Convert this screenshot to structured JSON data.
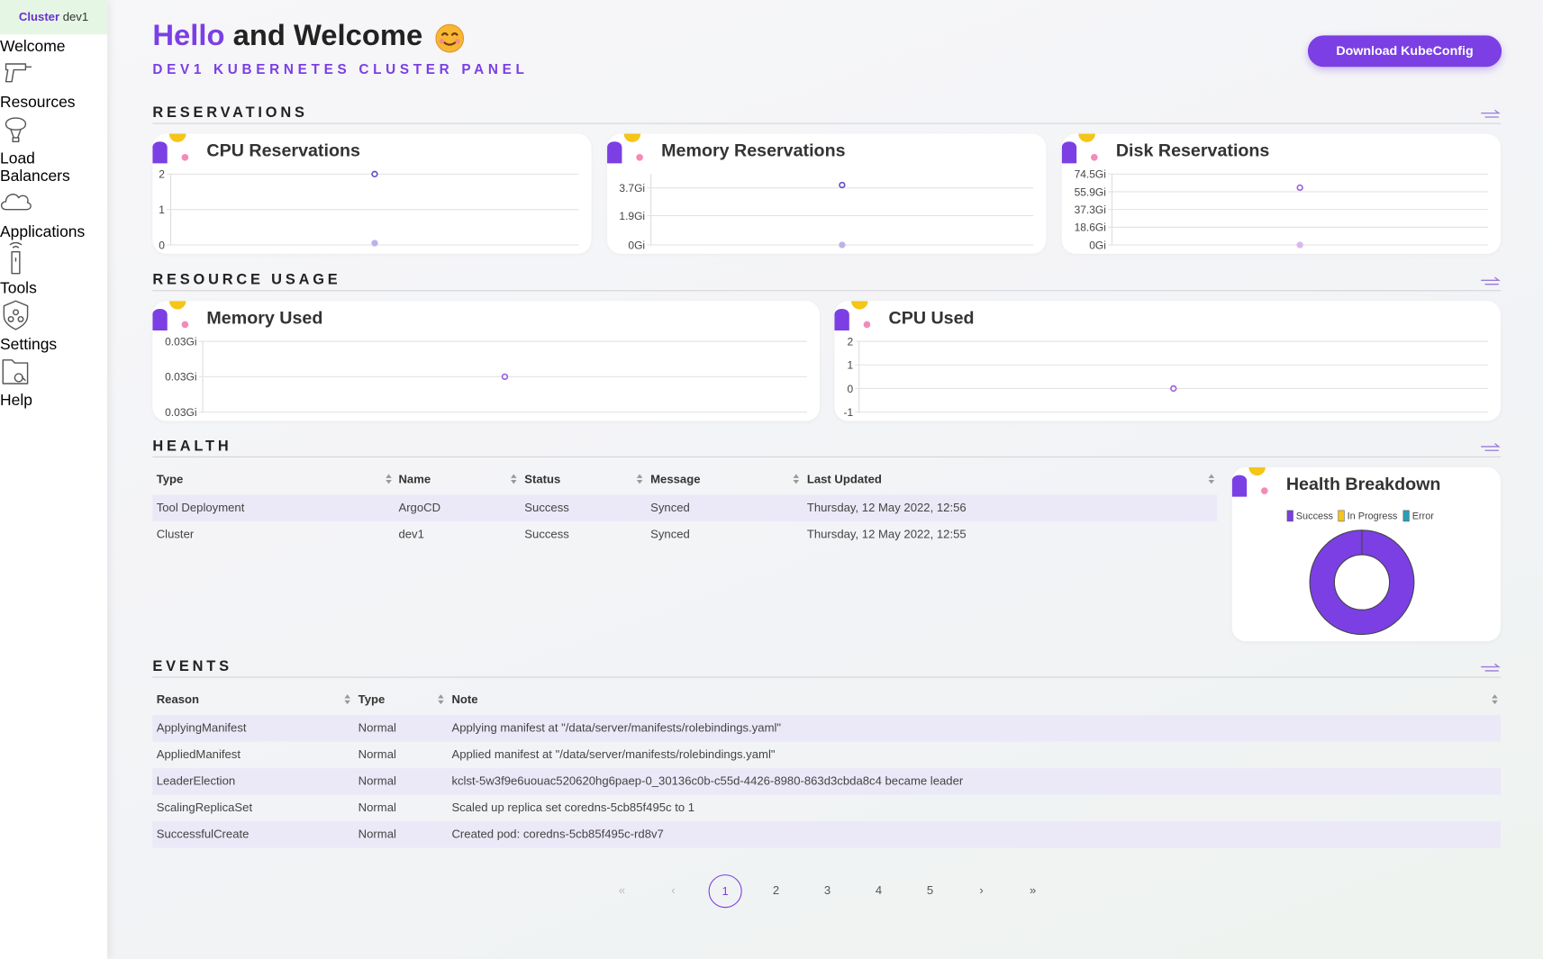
{
  "sidebar": {
    "cluster_label": "Cluster",
    "cluster_name": "dev1",
    "nav": [
      "Welcome",
      "Resources",
      "Load Balancers",
      "Applications",
      "Tools",
      "Settings",
      "Help"
    ],
    "active_index": 0
  },
  "header": {
    "hello": "Hello",
    "welcome": "and Welcome",
    "subtitle": "DEV1 KUBERNETES CLUSTER PANEL",
    "button": "Download KubeConfig"
  },
  "sections": {
    "reservations": "RESERVATIONS",
    "usage": "RESOURCE USAGE",
    "health": "HEALTH",
    "events": "EVENTS"
  },
  "charts": [
    {
      "type": "scatter",
      "title": "CPU Reservations",
      "ylim": [
        0,
        2
      ],
      "yticks": [
        0,
        1,
        2
      ],
      "series": [
        {
          "color": "#5b4fc9",
          "values": [
            2
          ]
        },
        {
          "color": "#b9b5ea",
          "values": [
            0.05
          ]
        }
      ]
    },
    {
      "type": "scatter",
      "title": "Memory Reservations",
      "ylim": [
        0,
        4.6
      ],
      "yticks": [
        {
          "value": 0,
          "label": "0Gi"
        },
        {
          "value": 1.9,
          "label": "1.9Gi"
        },
        {
          "value": 3.7,
          "label": "3.7Gi"
        }
      ],
      "series": [
        {
          "color": "#5b4fc9",
          "values": [
            3.89
          ]
        },
        {
          "color": "#b9b5ea",
          "values": [
            0
          ]
        }
      ]
    },
    {
      "type": "scatter",
      "title": "Disk Reservations",
      "ylim": [
        0,
        74.5
      ],
      "yticks": [
        {
          "value": 0,
          "label": "0Gi"
        },
        {
          "value": 18.6,
          "label": "18.6Gi"
        },
        {
          "value": 37.3,
          "label": "37.3Gi"
        },
        {
          "value": 55.9,
          "label": "55.9Gi"
        },
        {
          "value": 74.5,
          "label": "74.5Gi"
        }
      ],
      "series": [
        {
          "color": "#9a5fd6",
          "values": [
            60.2
          ]
        },
        {
          "color": "#d9b8ee",
          "values": [
            0
          ]
        }
      ]
    },
    {
      "type": "scatter",
      "title": "Memory Used",
      "ylim": [
        0.026,
        0.034
      ],
      "yticks": [
        {
          "value": 0.026,
          "label": "0.03Gi"
        },
        {
          "value": 0.03,
          "label": "0.03Gi"
        },
        {
          "value": 0.034,
          "label": "0.03Gi"
        }
      ],
      "series": [
        {
          "color": "#9a5fd6",
          "values": [
            0.03
          ]
        }
      ]
    },
    {
      "type": "scatter",
      "title": "CPU Used",
      "ylim": [
        -1,
        2
      ],
      "yticks": [
        -1,
        0,
        1,
        2
      ],
      "series": [
        {
          "color": "#9a5fd6",
          "values": [
            0
          ]
        }
      ]
    }
  ],
  "health_table": {
    "columns": [
      "Type",
      "Name",
      "Status",
      "Message",
      "Last Updated"
    ],
    "rows": [
      [
        "Tool Deployment",
        "ArgoCD",
        "Success",
        "Synced",
        "Thursday, 12 May 2022, 12:56"
      ],
      [
        "Cluster",
        "dev1",
        "Success",
        "Synced",
        "Thursday, 12 May 2022, 12:55"
      ]
    ]
  },
  "health_breakdown": {
    "type": "pie",
    "title": "Health Breakdown",
    "categories": [
      "Success",
      "In Progress",
      "Error"
    ],
    "colors": [
      "#7b3fe4",
      "#f5c518",
      "#2a9fb6"
    ],
    "values": [
      2,
      0,
      0
    ]
  },
  "events_table": {
    "columns": [
      "Reason",
      "Type",
      "Note"
    ],
    "rows": [
      [
        "ApplyingManifest",
        "Normal",
        "Applying manifest at \"/data/server/manifests/rolebindings.yaml\""
      ],
      [
        "AppliedManifest",
        "Normal",
        "Applied manifest at \"/data/server/manifests/rolebindings.yaml\""
      ],
      [
        "LeaderElection",
        "Normal",
        "kclst-5w3f9e6uouac520620hg6paep-0_30136c0b-c55d-4426-8980-863d3cbda8c4 became leader"
      ],
      [
        "ScalingReplicaSet",
        "Normal",
        "Scaled up replica set coredns-5cb85f495c to 1"
      ],
      [
        "SuccessfulCreate",
        "Normal",
        "Created pod: coredns-5cb85f495c-rd8v7"
      ]
    ]
  },
  "pagination": {
    "pages": [
      "«",
      "‹",
      "1",
      "2",
      "3",
      "4",
      "5",
      "›",
      "»"
    ],
    "active_index": 2
  }
}
